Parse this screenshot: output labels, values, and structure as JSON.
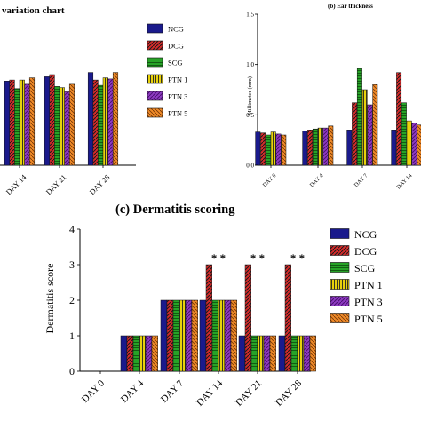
{
  "colors": {
    "NCG": "#1a1a8c",
    "DCG": "#d42a2a",
    "SCG": "#27a327",
    "PTN 1": "#e8d20c",
    "PTN 3": "#8e3bc2",
    "PTN 5": "#ef8a28"
  },
  "chart_data": [
    {
      "id": "weight",
      "type": "bar",
      "title": "variation chart",
      "categories": [
        "DAY 14",
        "DAY 21",
        "DAY 28"
      ],
      "series": [
        {
          "name": "NCG",
          "values": [
            0.78,
            0.82,
            0.86
          ]
        },
        {
          "name": "DCG",
          "values": [
            0.79,
            0.84,
            0.79
          ]
        },
        {
          "name": "SCG",
          "values": [
            0.71,
            0.73,
            0.74
          ]
        },
        {
          "name": "PTN 1",
          "values": [
            0.79,
            0.72,
            0.81
          ]
        },
        {
          "name": "PTN 3",
          "values": [
            0.75,
            0.68,
            0.8
          ]
        },
        {
          "name": "PTN 5",
          "values": [
            0.81,
            0.75,
            0.86
          ]
        }
      ],
      "ylim": [
        0,
        1.4
      ]
    },
    {
      "id": "ear",
      "type": "bar",
      "title": "(b) Ear thickness",
      "ylabel": "Millimeter (mm)",
      "categories": [
        "DAY 0",
        "DAY 4",
        "DAY 7",
        "DAY 14"
      ],
      "yticks": [
        "1.5",
        "1.0",
        "0.5",
        "0.0"
      ],
      "ylim": [
        0,
        1.5
      ],
      "series": [
        {
          "name": "NCG",
          "values": [
            0.33,
            0.34,
            0.35,
            0.35
          ]
        },
        {
          "name": "DCG",
          "values": [
            0.32,
            0.35,
            0.62,
            0.92
          ]
        },
        {
          "name": "SCG",
          "values": [
            0.3,
            0.36,
            0.96,
            0.62
          ]
        },
        {
          "name": "PTN 1",
          "values": [
            0.33,
            0.37,
            0.75,
            0.44
          ]
        },
        {
          "name": "PTN 3",
          "values": [
            0.31,
            0.37,
            0.6,
            0.42
          ]
        },
        {
          "name": "PTN 5",
          "values": [
            0.3,
            0.39,
            0.8,
            0.4
          ]
        }
      ]
    },
    {
      "id": "derm",
      "type": "bar",
      "title": "(c) Dermatitis scoring",
      "ylabel": "Dermatitis score",
      "categories": [
        "DAY 0",
        "DAY 4",
        "DAY 7",
        "DAY 14",
        "DAY 21",
        "DAY 28"
      ],
      "yticks": [
        "0",
        "1",
        "2",
        "3",
        "4"
      ],
      "ylim": [
        0,
        4
      ],
      "series": [
        {
          "name": "NCG",
          "values": [
            0,
            1,
            2,
            2,
            1,
            1
          ]
        },
        {
          "name": "DCG",
          "values": [
            0,
            1,
            2,
            3,
            3,
            3
          ]
        },
        {
          "name": "SCG",
          "values": [
            0,
            1,
            2,
            2,
            1,
            1
          ]
        },
        {
          "name": "PTN 1",
          "values": [
            0,
            1,
            2,
            2,
            1,
            1
          ]
        },
        {
          "name": "PTN 3",
          "values": [
            0,
            1,
            2,
            2,
            1,
            1
          ]
        },
        {
          "name": "PTN 5",
          "values": [
            0,
            1,
            2,
            2,
            1,
            1
          ]
        }
      ],
      "annotations": [
        {
          "category": "DAY 14",
          "text": "* *"
        },
        {
          "category": "DAY 21",
          "text": "* *"
        },
        {
          "category": "DAY 28",
          "text": "* *"
        }
      ]
    }
  ]
}
